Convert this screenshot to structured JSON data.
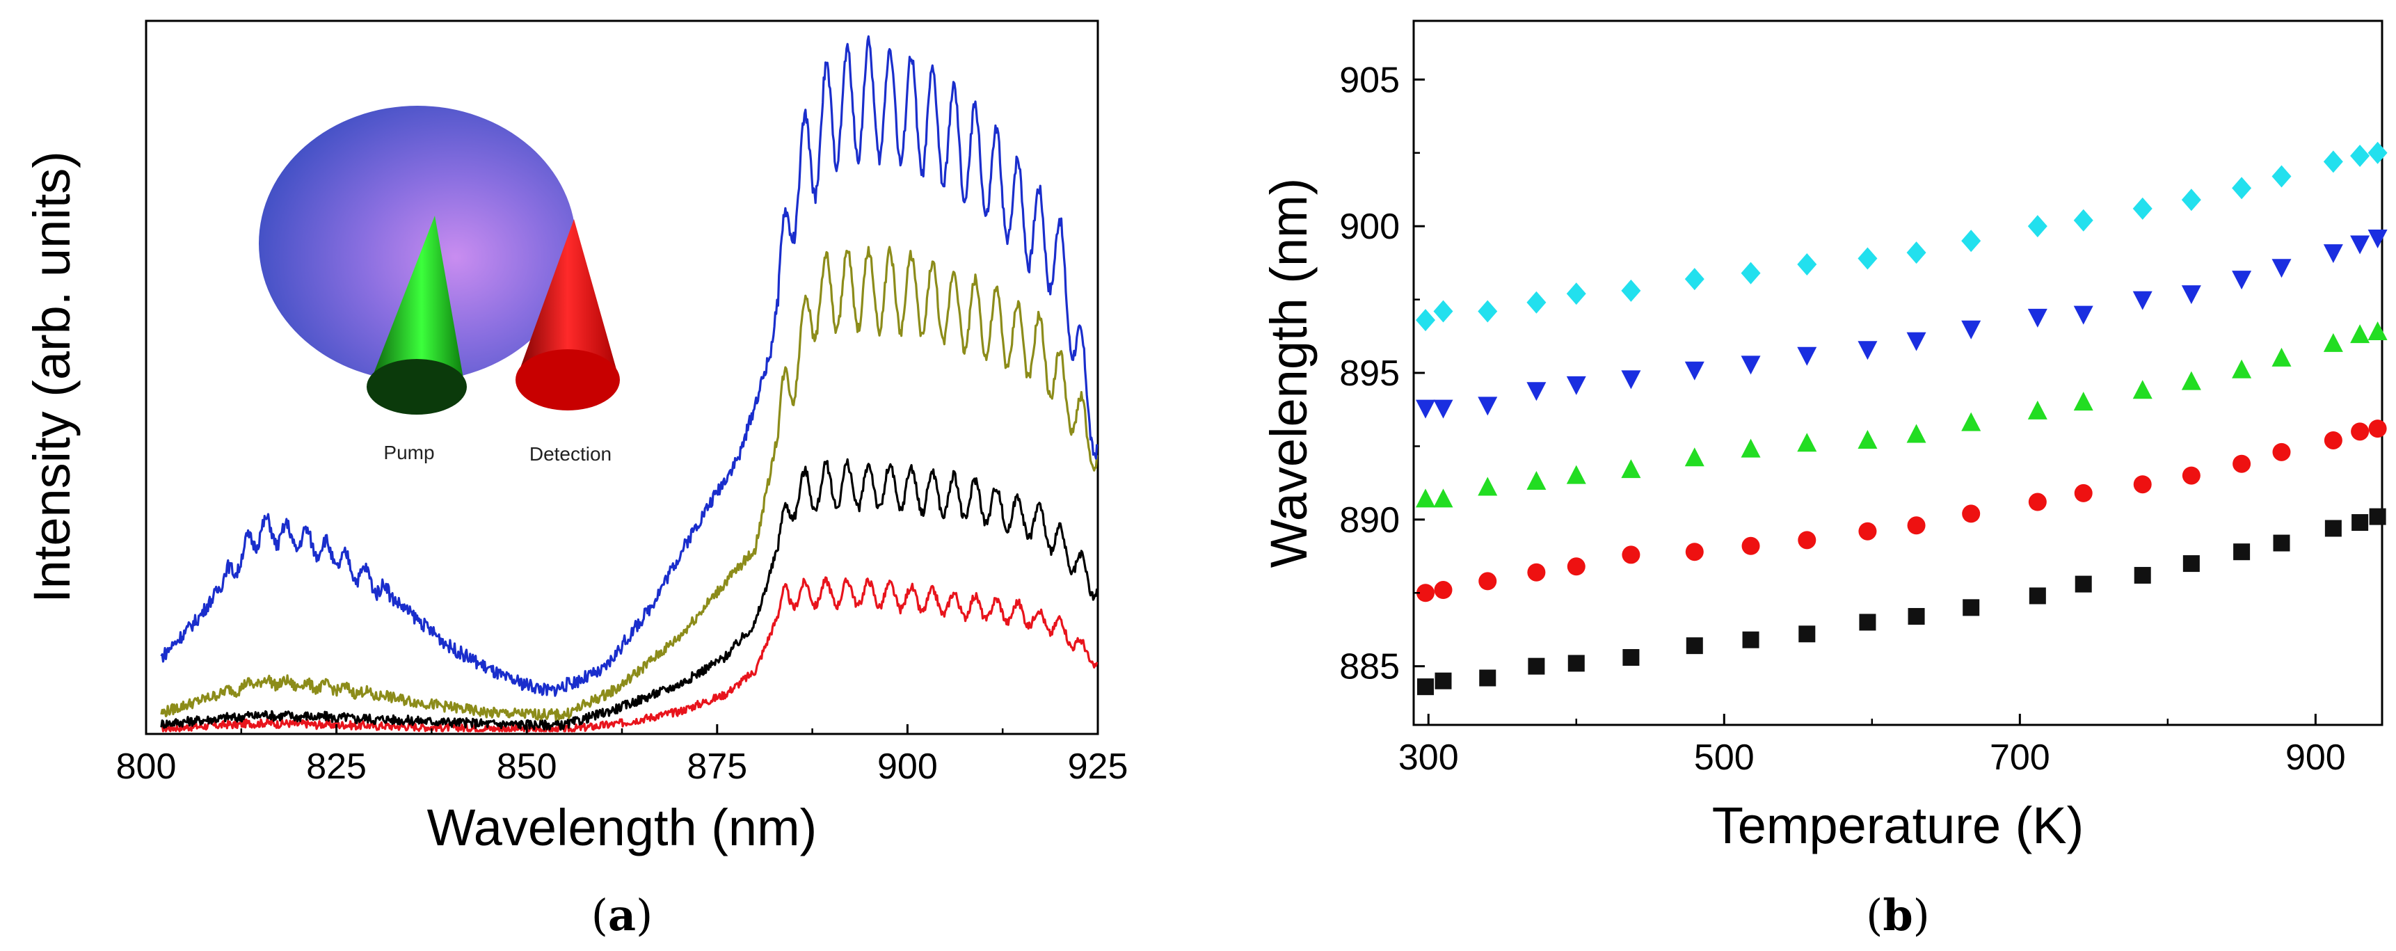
{
  "chart_data": [
    {
      "panel": "(a)",
      "panel_parts": {
        "open": "(",
        "letter": "a",
        "close": ")"
      },
      "type": "line",
      "xlabel": "Wavelength (nm)",
      "ylabel": "Intensity (arb. units)",
      "xlim": [
        800,
        925
      ],
      "ylim": [
        0,
        1.0
      ],
      "xticks": [
        800,
        825,
        850,
        875,
        900,
        925
      ],
      "yticks_shown": false,
      "grid": false,
      "inset": {
        "labels": [
          "Pump",
          "Detection"
        ]
      },
      "series": [
        {
          "color": "#e8141c",
          "noise": 0.006,
          "points": [
            [
              802,
              0.005
            ],
            [
              815,
              0.013
            ],
            [
              830,
              0.009
            ],
            [
              845,
              0.005
            ],
            [
              855,
              0.003
            ],
            [
              862,
              0.012
            ],
            [
              870,
              0.03
            ],
            [
              876,
              0.055
            ],
            [
              880,
              0.09
            ],
            [
              884,
              0.2
            ],
            [
              888,
              0.205
            ],
            [
              895,
              0.205
            ],
            [
              905,
              0.19
            ],
            [
              915,
              0.175
            ],
            [
              920,
              0.155
            ],
            [
              925,
              0.1
            ]
          ]
        },
        {
          "color": "#000000",
          "noise": 0.007,
          "points": [
            [
              802,
              0.012
            ],
            [
              815,
              0.025
            ],
            [
              830,
              0.019
            ],
            [
              845,
              0.012
            ],
            [
              855,
              0.01
            ],
            [
              862,
              0.035
            ],
            [
              870,
              0.07
            ],
            [
              876,
              0.11
            ],
            [
              880,
              0.16
            ],
            [
              885,
              0.35
            ],
            [
              890,
              0.365
            ],
            [
              900,
              0.36
            ],
            [
              910,
              0.34
            ],
            [
              918,
              0.305
            ],
            [
              925,
              0.21
            ]
          ]
        },
        {
          "color": "#8c8c1a",
          "noise": 0.008,
          "points": [
            [
              802,
              0.028
            ],
            [
              815,
              0.075
            ],
            [
              825,
              0.065
            ],
            [
              835,
              0.045
            ],
            [
              845,
              0.028
            ],
            [
              855,
              0.025
            ],
            [
              862,
              0.065
            ],
            [
              870,
              0.14
            ],
            [
              876,
              0.22
            ],
            [
              880,
              0.27
            ],
            [
              884,
              0.5
            ],
            [
              888,
              0.645
            ],
            [
              893,
              0.655
            ],
            [
              900,
              0.65
            ],
            [
              910,
              0.61
            ],
            [
              918,
              0.56
            ],
            [
              925,
              0.41
            ]
          ]
        },
        {
          "color": "#1a2ecc",
          "noise": 0.01,
          "points": [
            [
              802,
              0.11
            ],
            [
              807,
              0.17
            ],
            [
              815,
              0.3
            ],
            [
              822,
              0.28
            ],
            [
              830,
              0.22
            ],
            [
              840,
              0.125
            ],
            [
              847,
              0.08
            ],
            [
              853,
              0.06
            ],
            [
              860,
              0.09
            ],
            [
              866,
              0.18
            ],
            [
              872,
              0.3
            ],
            [
              878,
              0.41
            ],
            [
              882,
              0.56
            ],
            [
              885,
              0.8
            ],
            [
              890,
              0.92
            ],
            [
              895,
              0.935
            ],
            [
              900,
              0.92
            ],
            [
              905,
              0.885
            ],
            [
              910,
              0.84
            ],
            [
              915,
              0.77
            ],
            [
              920,
              0.7
            ],
            [
              925,
              0.42
            ]
          ]
        }
      ]
    },
    {
      "panel": "(b)",
      "panel_parts": {
        "open": "(",
        "letter": "b",
        "close": ")"
      },
      "type": "scatter",
      "xlabel": "Temperature (K)",
      "ylabel": "Wavelength (nm)",
      "xlim": [
        290,
        945
      ],
      "ylim": [
        883,
        907
      ],
      "xticks": [
        300,
        500,
        700,
        900
      ],
      "yticks": [
        885,
        890,
        895,
        900,
        905
      ],
      "grid": false,
      "series": [
        {
          "marker": "square",
          "color": "#111111",
          "x": [
            298,
            310,
            340,
            373,
            400,
            437,
            480,
            518,
            556,
            597,
            630,
            667,
            712,
            743,
            783,
            816,
            850,
            877,
            912,
            930,
            942
          ],
          "y": [
            884.3,
            884.5,
            884.6,
            885.0,
            885.1,
            885.3,
            885.7,
            885.9,
            886.1,
            886.5,
            886.7,
            887.0,
            887.4,
            887.8,
            888.1,
            888.5,
            888.9,
            889.2,
            889.7,
            889.9,
            890.1
          ]
        },
        {
          "marker": "circle",
          "color": "#ee1111",
          "x": [
            298,
            310,
            340,
            373,
            400,
            437,
            480,
            518,
            556,
            597,
            630,
            667,
            712,
            743,
            783,
            816,
            850,
            877,
            912,
            930,
            942
          ],
          "y": [
            887.5,
            887.6,
            887.9,
            888.2,
            888.4,
            888.8,
            888.9,
            889.1,
            889.3,
            889.6,
            889.8,
            890.2,
            890.6,
            890.9,
            891.2,
            891.5,
            891.9,
            892.3,
            892.7,
            893.0,
            893.1
          ]
        },
        {
          "marker": "triangle-up",
          "color": "#22dd22",
          "x": [
            298,
            310,
            340,
            373,
            400,
            437,
            480,
            518,
            556,
            597,
            630,
            667,
            712,
            743,
            783,
            816,
            850,
            877,
            912,
            930,
            942
          ],
          "y": [
            890.7,
            890.7,
            891.1,
            891.3,
            891.5,
            891.7,
            892.1,
            892.4,
            892.6,
            892.7,
            892.9,
            893.3,
            893.7,
            894.0,
            894.4,
            894.7,
            895.1,
            895.5,
            896.0,
            896.3,
            896.4
          ]
        },
        {
          "marker": "triangle-down",
          "color": "#1a2ee0",
          "x": [
            298,
            310,
            340,
            373,
            400,
            437,
            480,
            518,
            556,
            597,
            630,
            667,
            712,
            743,
            783,
            816,
            850,
            877,
            912,
            930,
            942
          ],
          "y": [
            893.8,
            893.8,
            893.9,
            894.4,
            894.6,
            894.8,
            895.1,
            895.3,
            895.6,
            895.8,
            896.1,
            896.5,
            896.9,
            897.0,
            897.5,
            897.7,
            898.2,
            898.6,
            899.1,
            899.4,
            899.6
          ]
        },
        {
          "marker": "diamond",
          "color": "#22e0ee",
          "x": [
            298,
            310,
            340,
            373,
            400,
            437,
            480,
            518,
            556,
            597,
            630,
            667,
            712,
            743,
            783,
            816,
            850,
            877,
            912,
            930,
            942
          ],
          "y": [
            896.8,
            897.1,
            897.1,
            897.4,
            897.7,
            897.8,
            898.2,
            898.4,
            898.7,
            898.9,
            899.1,
            899.5,
            900.0,
            900.2,
            900.6,
            900.9,
            901.3,
            901.7,
            902.2,
            902.4,
            902.5
          ]
        }
      ]
    }
  ]
}
